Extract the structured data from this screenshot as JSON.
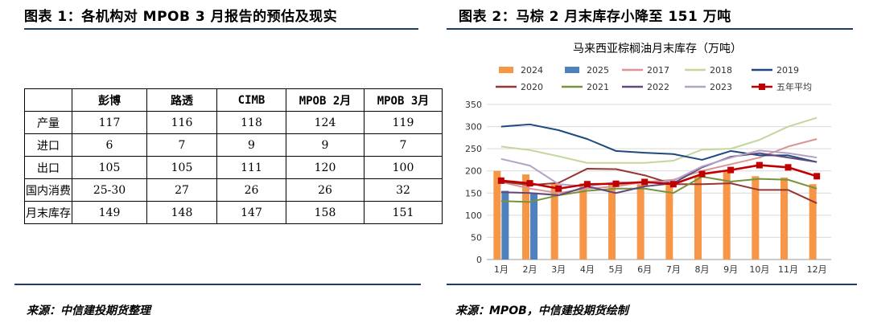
{
  "left": {
    "title": "图表 1：各机构对 MPOB 3 月报告的预估及现实",
    "source": "来源：中信建投期货整理",
    "table": {
      "headers": [
        "",
        "彭博",
        "路透",
        "CIMB",
        "MPOB 2月",
        "MPOB 3月"
      ],
      "rows": [
        [
          "产量",
          "117",
          "116",
          "118",
          "124",
          "119"
        ],
        [
          "进口",
          "6",
          "7",
          "9",
          "9",
          "7"
        ],
        [
          "出口",
          "105",
          "105",
          "111",
          "120",
          "100"
        ],
        [
          "国内消费",
          "25-30",
          "27",
          "26",
          "26",
          "32"
        ],
        [
          "月末库存",
          "149",
          "148",
          "147",
          "158",
          "151"
        ]
      ]
    }
  },
  "right": {
    "title": "图表 2：马棕 2 月末库存小降至 151 万吨",
    "source": "来源：MPOB，中信建投期货绘制"
  },
  "chart_data": {
    "type": "bar",
    "title": "马来西亚棕榈油月末库存（万吨）",
    "categories": [
      "1月",
      "2月",
      "3月",
      "4月",
      "5月",
      "6月",
      "7月",
      "8月",
      "9月",
      "10月",
      "11月",
      "12月"
    ],
    "ylim": [
      0,
      350
    ],
    "yticks": [
      0,
      50,
      100,
      150,
      200,
      250,
      300,
      350
    ],
    "legend_position": "top",
    "bar_series": [
      {
        "name": "2024",
        "color": "#f79646",
        "values": [
          200,
          192,
          172,
          172,
          172,
          170,
          172,
          188,
          200,
          188,
          185,
          170
        ]
      },
      {
        "name": "2025",
        "color": "#4f81bd",
        "values": [
          155,
          151,
          null,
          null,
          null,
          null,
          null,
          null,
          null,
          null,
          null,
          null
        ]
      }
    ],
    "line_series": [
      {
        "name": "2017",
        "color": "#d99594",
        "values": [
          175,
          160,
          150,
          160,
          165,
          175,
          180,
          200,
          215,
          230,
          255,
          272
        ]
      },
      {
        "name": "2018",
        "color": "#c3d69b",
        "values": [
          255,
          247,
          233,
          218,
          218,
          218,
          223,
          248,
          250,
          270,
          300,
          320
        ]
      },
      {
        "name": "2019",
        "color": "#1f497d",
        "values": [
          300,
          305,
          292,
          272,
          245,
          241,
          238,
          225,
          245,
          235,
          235,
          220
        ]
      },
      {
        "name": "2020",
        "color": "#953735",
        "values": [
          176,
          168,
          173,
          205,
          204,
          190,
          170,
          170,
          172,
          157,
          157,
          127
        ]
      },
      {
        "name": "2021",
        "color": "#77933c",
        "values": [
          132,
          130,
          145,
          155,
          160,
          160,
          150,
          187,
          176,
          182,
          180,
          160
        ]
      },
      {
        "name": "2022",
        "color": "#604a7b",
        "values": [
          152,
          150,
          145,
          165,
          150,
          165,
          172,
          208,
          232,
          240,
          230,
          220
        ]
      },
      {
        "name": "2023",
        "color": "#b3a2c7",
        "values": [
          227,
          212,
          170,
          165,
          175,
          172,
          178,
          210,
          230,
          246,
          240,
          230
        ]
      },
      {
        "name": "五年平均",
        "color": "#c00000",
        "marker": "square",
        "values": [
          178,
          172,
          160,
          170,
          171,
          175,
          170,
          193,
          202,
          213,
          208,
          188
        ]
      }
    ],
    "legend_rows": [
      [
        "2024",
        "2025",
        "2017",
        "2018",
        "2019"
      ],
      [
        "2020",
        "2021",
        "2022",
        "2023",
        "五年平均"
      ]
    ]
  }
}
